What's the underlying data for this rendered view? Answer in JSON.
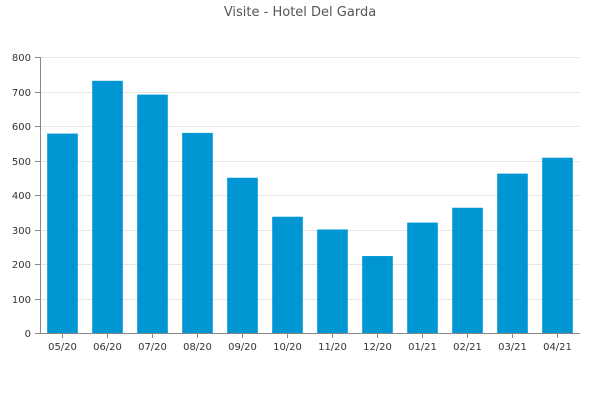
{
  "chart_data": {
    "type": "bar",
    "title": "Visite - Hotel Del Garda",
    "xlabel": "",
    "ylabel": "",
    "categories": [
      "05/20",
      "06/20",
      "07/20",
      "08/20",
      "09/20",
      "10/20",
      "11/20",
      "12/20",
      "01/21",
      "02/21",
      "03/21",
      "04/21"
    ],
    "values": [
      578,
      731,
      691,
      580,
      450,
      337,
      300,
      223,
      320,
      363,
      462,
      508
    ],
    "ylim": [
      0,
      800
    ],
    "yticks": [
      0,
      100,
      200,
      300,
      400,
      500,
      600,
      700,
      800
    ],
    "grid": true,
    "legend": "none",
    "colors": {
      "bar": "#0095d3",
      "grid": "#e6e6e6",
      "axis": "#888888",
      "title": "#555555",
      "tick_text": "#333333"
    }
  }
}
